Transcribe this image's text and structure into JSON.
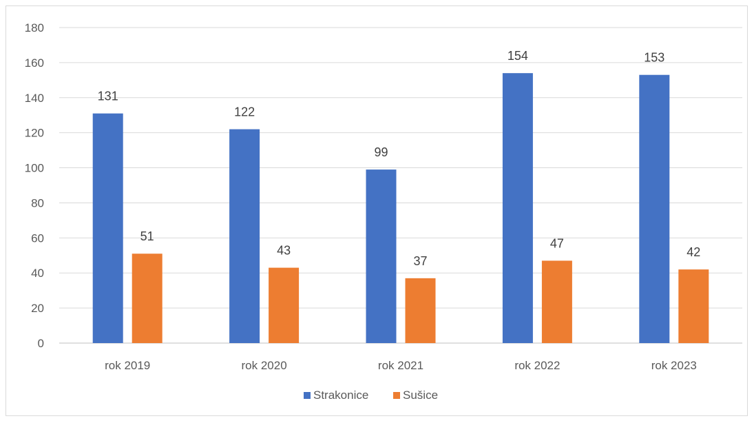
{
  "chart_data": {
    "type": "bar",
    "title": "",
    "xlabel": "",
    "ylabel": "",
    "categories": [
      "rok 2019",
      "rok 2020",
      "rok 2021",
      "rok 2022",
      "rok 2023"
    ],
    "series": [
      {
        "name": "Strakonice",
        "color": "#4472C4",
        "values": [
          131,
          122,
          99,
          154,
          153
        ]
      },
      {
        "name": "Sušice",
        "color": "#ED7D31",
        "values": [
          51,
          43,
          37,
          47,
          42
        ]
      }
    ],
    "ylim": [
      0,
      180
    ],
    "yticks": [
      0,
      20,
      40,
      60,
      80,
      100,
      120,
      140,
      160,
      180
    ],
    "grid": true,
    "legend": "bottom",
    "data_labels": true
  }
}
